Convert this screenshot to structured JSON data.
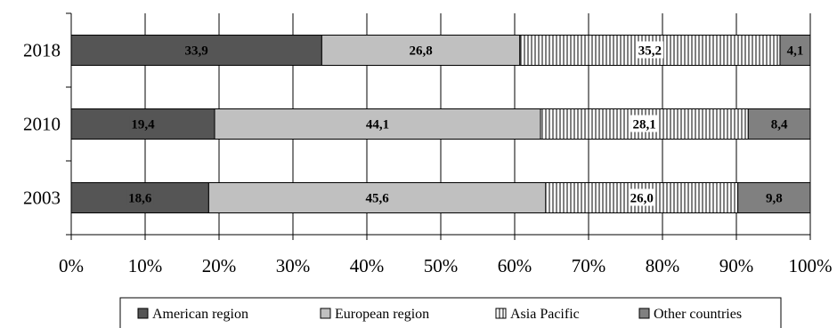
{
  "chart_data": {
    "type": "bar",
    "orientation": "horizontal",
    "stacked": true,
    "categories": [
      "2018",
      "2010",
      "2003"
    ],
    "series": [
      {
        "name": "American region",
        "values": [
          33.9,
          19.4,
          18.6
        ],
        "labels": [
          "33,9",
          "19,4",
          "18,6"
        ],
        "color": "#555555",
        "pattern": "solid"
      },
      {
        "name": "European region",
        "values": [
          26.8,
          44.1,
          45.6
        ],
        "labels": [
          "26,8",
          "44,1",
          "45,6"
        ],
        "color": "#c0c0c0",
        "pattern": "solid"
      },
      {
        "name": "Asia Pacific",
        "values": [
          35.2,
          28.1,
          26.0
        ],
        "labels": [
          "35,2",
          "28,1",
          "26,0"
        ],
        "color": "#ffffff",
        "pattern": "vertical-lines"
      },
      {
        "name": "Other countries",
        "values": [
          4.1,
          8.4,
          9.8
        ],
        "labels": [
          "4,1",
          "8,4",
          "9,8"
        ],
        "color": "#808080",
        "pattern": "solid"
      }
    ],
    "x_ticks": [
      "0%",
      "10%",
      "20%",
      "30%",
      "40%",
      "50%",
      "60%",
      "70%",
      "80%",
      "90%",
      "100%"
    ],
    "xlim": [
      0,
      100
    ],
    "grid": true,
    "legend": "bottom"
  }
}
